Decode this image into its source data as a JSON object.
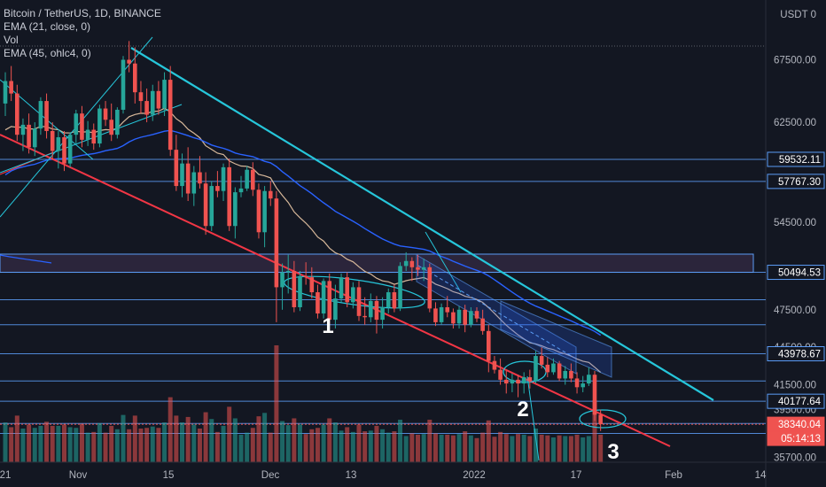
{
  "header": {
    "symbol": "Bitcoin / TetherUS, 1D, BINANCE",
    "indicators": [
      "EMA (21, close, 0)",
      "Vol",
      "EMA (45, ohlc4, 0)"
    ]
  },
  "colors": {
    "background": "#131722",
    "up": "#26a69a",
    "down": "#ef5350",
    "channel_upper": "#26c6da",
    "channel_lower": "#f23645",
    "level_line": "#5b9cf6",
    "ema21": "#d7b89a",
    "ema45": "#2962ff",
    "price_label_bg": "#2962ff"
  },
  "chart_data": {
    "type": "candlestick",
    "exchange": "BINANCE",
    "pair": "BTC/USDT",
    "interval": "1D",
    "y_axis": {
      "unit_label": "USDT",
      "ticks": [
        "67500.00",
        "62500.00",
        "54500.00",
        "47500.00",
        "44500.00",
        "41500.00",
        "39500.00",
        "35700.00"
      ],
      "ylim": [
        35000,
        70500
      ]
    },
    "x_axis": {
      "ticks": [
        "21",
        "Nov",
        "15",
        "Dec",
        "13",
        "2022",
        "17",
        "Feb",
        "14"
      ]
    },
    "price_labels": [
      {
        "value": "59532.11",
        "style": "outline"
      },
      {
        "value": "57767.30",
        "style": "outline"
      },
      {
        "value": "50494.53",
        "style": "outline"
      },
      {
        "value": "43978.67",
        "style": "outline"
      },
      {
        "value": "40177.64",
        "style": "outline"
      },
      {
        "value": "38340.04",
        "style": "current"
      },
      {
        "value": "05:14:13",
        "style": "current"
      }
    ],
    "horizontal_levels": [
      59532.11,
      57767.3,
      50494.53,
      48300,
      46300,
      43978.67,
      41800,
      40177.64,
      38400,
      37600
    ],
    "candles": [
      [
        0,
        64000,
        66500,
        63000,
        65800
      ],
      [
        1,
        65800,
        67000,
        64200,
        64800
      ],
      [
        2,
        64800,
        65500,
        61000,
        61500
      ],
      [
        3,
        61500,
        62800,
        60200,
        62300
      ],
      [
        4,
        62300,
        63200,
        60000,
        60500
      ],
      [
        5,
        60500,
        62500,
        59800,
        62000
      ],
      [
        6,
        62000,
        64500,
        61500,
        64200
      ],
      [
        7,
        64200,
        64800,
        61200,
        61800
      ],
      [
        8,
        61800,
        62500,
        59500,
        60200
      ],
      [
        9,
        60200,
        61800,
        58800,
        61300
      ],
      [
        10,
        61300,
        61800,
        58600,
        59200
      ],
      [
        11,
        59200,
        61700,
        58900,
        61500
      ],
      [
        12,
        61500,
        63500,
        60800,
        63200
      ],
      [
        13,
        63200,
        63800,
        60500,
        61100
      ],
      [
        14,
        61100,
        62600,
        60600,
        61900
      ],
      [
        15,
        61900,
        62400,
        60300,
        60800
      ],
      [
        16,
        60800,
        63900,
        60500,
        63600
      ],
      [
        17,
        63600,
        64200,
        62200,
        62700
      ],
      [
        18,
        62700,
        64000,
        61000,
        61500
      ],
      [
        19,
        61500,
        63700,
        61200,
        63500
      ],
      [
        20,
        63500,
        67800,
        63200,
        67500
      ],
      [
        21,
        67500,
        69000,
        66500,
        67200
      ],
      [
        22,
        67200,
        68500,
        64000,
        64900
      ],
      [
        23,
        64900,
        65800,
        63200,
        64200
      ],
      [
        24,
        64200,
        65200,
        62500,
        63100
      ],
      [
        25,
        63100,
        65500,
        62600,
        65000
      ],
      [
        26,
        65000,
        65800,
        63100,
        63600
      ],
      [
        27,
        63600,
        66500,
        63000,
        65900
      ],
      [
        28,
        65900,
        67000,
        59800,
        60300
      ],
      [
        29,
        60300,
        61500,
        57000,
        57400
      ],
      [
        30,
        57400,
        60000,
        56500,
        59200
      ],
      [
        31,
        59200,
        60500,
        56200,
        56800
      ],
      [
        32,
        56800,
        59000,
        55800,
        58500
      ],
      [
        33,
        58500,
        59800,
        57200,
        57600
      ],
      [
        34,
        57600,
        58500,
        53500,
        54200
      ],
      [
        35,
        54200,
        57800,
        53800,
        57400
      ],
      [
        36,
        57400,
        58600,
        56500,
        57000
      ],
      [
        37,
        57000,
        59200,
        56200,
        58900
      ],
      [
        38,
        58900,
        59600,
        53800,
        54200
      ],
      [
        39,
        54200,
        57300,
        53200,
        56900
      ],
      [
        40,
        56900,
        58200,
        56500,
        57200
      ],
      [
        41,
        57200,
        59000,
        57000,
        58700
      ],
      [
        42,
        58700,
        59300,
        56600,
        57100
      ],
      [
        43,
        57100,
        57600,
        53200,
        53700
      ],
      [
        44,
        53700,
        57400,
        52500,
        57000
      ],
      [
        45,
        57000,
        57800,
        55800,
        56400
      ],
      [
        46,
        56400,
        57000,
        46500,
        49300
      ],
      [
        47,
        49300,
        51200,
        47500,
        50500
      ],
      [
        48,
        50500,
        51900,
        48800,
        50600
      ],
      [
        49,
        50600,
        51400,
        47300,
        47700
      ],
      [
        50,
        47700,
        50600,
        47400,
        50200
      ],
      [
        51,
        50200,
        51300,
        49500,
        50100
      ],
      [
        52,
        50100,
        50900,
        48400,
        48900
      ],
      [
        53,
        48900,
        49500,
        46800,
        47200
      ],
      [
        54,
        47200,
        50000,
        46800,
        49800
      ],
      [
        55,
        49800,
        50400,
        46300,
        46700
      ],
      [
        56,
        46700,
        49500,
        46000,
        48400
      ],
      [
        57,
        48400,
        50400,
        48100,
        50100
      ],
      [
        58,
        50100,
        50500,
        47700,
        48100
      ],
      [
        59,
        48100,
        49700,
        47600,
        49300
      ],
      [
        60,
        49300,
        49800,
        46600,
        47000
      ],
      [
        61,
        47000,
        48500,
        46300,
        46900
      ],
      [
        62,
        46900,
        48800,
        46500,
        48200
      ],
      [
        63,
        48200,
        48600,
        45600,
        46700
      ],
      [
        64,
        46700,
        48500,
        46000,
        47700
      ],
      [
        65,
        47700,
        49200,
        47200,
        48900
      ],
      [
        66,
        48900,
        49500,
        47300,
        47600
      ],
      [
        67,
        47600,
        51300,
        47400,
        51000
      ],
      [
        68,
        51000,
        52100,
        50600,
        51400
      ],
      [
        69,
        51400,
        51700,
        49800,
        50900
      ],
      [
        70,
        50900,
        51900,
        50200,
        50700
      ],
      [
        71,
        50700,
        51600,
        49800,
        50900
      ],
      [
        72,
        50900,
        51200,
        47300,
        47600
      ],
      [
        73,
        47600,
        48100,
        46200,
        46500
      ],
      [
        74,
        46500,
        48000,
        46300,
        47700
      ],
      [
        75,
        47700,
        48600,
        46900,
        47300
      ],
      [
        76,
        47300,
        47600,
        46000,
        46400
      ],
      [
        77,
        46400,
        47800,
        46000,
        47500
      ],
      [
        78,
        47500,
        47900,
        45700,
        46300
      ],
      [
        79,
        46300,
        47700,
        46100,
        47400
      ],
      [
        80,
        47400,
        47700,
        46500,
        46800
      ],
      [
        81,
        46800,
        47500,
        45500,
        45800
      ],
      [
        82,
        45800,
        46300,
        42500,
        43400
      ],
      [
        83,
        43400,
        43800,
        42400,
        42700
      ],
      [
        84,
        42700,
        43600,
        41500,
        41900
      ],
      [
        85,
        41900,
        42600,
        40800,
        41600
      ],
      [
        86,
        41600,
        42400,
        40900,
        41900
      ],
      [
        87,
        41900,
        42300,
        40500,
        41600
      ],
      [
        88,
        41600,
        42500,
        40800,
        42100
      ],
      [
        89,
        42100,
        42700,
        41200,
        41800
      ],
      [
        90,
        41800,
        44200,
        41600,
        43800
      ],
      [
        91,
        43800,
        44500,
        42800,
        43100
      ],
      [
        92,
        43100,
        43700,
        42100,
        42500
      ],
      [
        93,
        42500,
        43600,
        42300,
        43200
      ],
      [
        94,
        43200,
        43400,
        41800,
        42000
      ],
      [
        95,
        42000,
        43000,
        41500,
        42600
      ],
      [
        96,
        42600,
        43200,
        41700,
        42000
      ],
      [
        97,
        42000,
        42500,
        40800,
        41300
      ],
      [
        98,
        41300,
        42200,
        40900,
        41600
      ],
      [
        99,
        41600,
        42900,
        41400,
        42300
      ],
      [
        100,
        42300,
        42600,
        38600,
        39100
      ],
      [
        101,
        39100,
        39500,
        37800,
        38340
      ]
    ]
  }
}
